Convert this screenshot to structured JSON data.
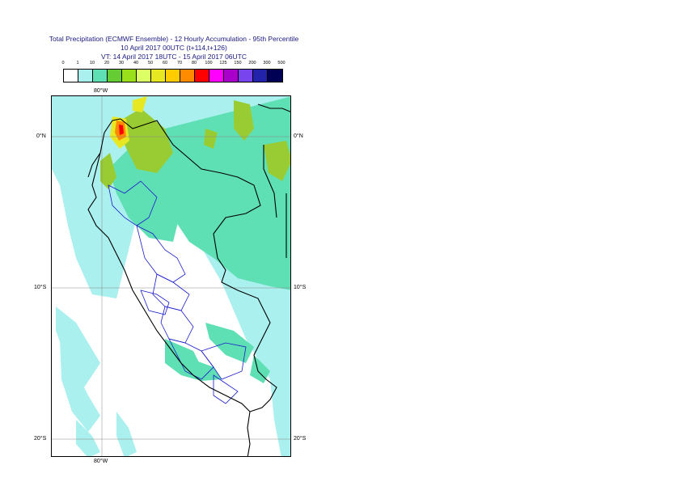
{
  "title": {
    "line1": "Total Precipitation (ECMWF Ensemble) - 12 Hourly Accumulation - 95th Percentile",
    "line2": "10 April 2017 00UTC (t+114,t+126)",
    "line3": "VT: 14 April 2017 18UTC - 15 April 2017 06UTC"
  },
  "legend": {
    "thresholds": [
      "0",
      "1",
      "10",
      "20",
      "30",
      "40",
      "50",
      "60",
      "70",
      "80",
      "100",
      "125",
      "150",
      "200",
      "300",
      "500"
    ],
    "colors": [
      "#ffffff",
      "#aaf0ee",
      "#5fe0b4",
      "#66cc33",
      "#99e01a",
      "#ddff66",
      "#e8e822",
      "#ffcc00",
      "#ff8c00",
      "#ff0000",
      "#ff00ff",
      "#aa00cc",
      "#7744ee",
      "#2222aa",
      "#000055"
    ]
  },
  "map": {
    "lon_top": "80°W",
    "lon_bottom": "80°W",
    "lat_labels": {
      "eq_left": "0°N",
      "eq_right": "0°N",
      "s10_left": "10°S",
      "s10_right": "10°S",
      "s20_left": "20°S",
      "s20_right": "20°S"
    },
    "colors": {
      "light": "#aaf0ee",
      "medium": "#5fe0b4",
      "green": "#99cc33",
      "yellow": "#e8e822",
      "orange": "#ff8c00",
      "red": "#ff0000",
      "border_country": "#000000",
      "border_region": "#1a1acc",
      "grid": "#888888"
    }
  }
}
